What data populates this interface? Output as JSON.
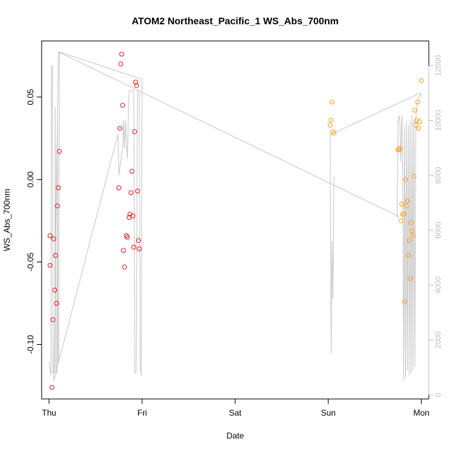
{
  "chart_data": {
    "type": "scatter",
    "title": "ATOM2 Northeast_Pacific_1 WS_Abs_700nm",
    "xlabel": "Date",
    "ylabel": "WS_Abs_700nm",
    "x_ticks": [
      "Thu",
      "Fri",
      "Sat",
      "Sun",
      "Mon"
    ],
    "x_unit": "days since Thu 00:00",
    "xlim": [
      -0.08,
      4.08
    ],
    "ylim": [
      -0.133,
      0.084
    ],
    "y_ticks": [
      0.05,
      0.0,
      -0.05,
      -0.1
    ],
    "y_tick_labels": [
      "0.05",
      "0.00",
      "-0.05",
      "-0.10"
    ],
    "y2lim": [
      -150,
      12900
    ],
    "y2_ticks": [
      0,
      2000,
      4000,
      6000,
      8000,
      10000,
      12000
    ],
    "y2_tick_labels": [
      "0",
      "2000",
      "4000",
      "6000",
      "8000",
      "10000",
      "12000"
    ],
    "grid": false,
    "colors": {
      "red": "#e41a1c",
      "orange": "#ff9f1c",
      "altitude": "#c8c8c8",
      "axis": "#000000",
      "axis2": "#bdbdbd"
    },
    "series": [
      {
        "color": "red",
        "points": [
          [
            0.01,
            -0.052
          ],
          [
            0.01,
            -0.034
          ],
          [
            0.03,
            -0.126
          ],
          [
            0.04,
            -0.085
          ],
          [
            0.05,
            -0.036
          ],
          [
            0.06,
            -0.067
          ],
          [
            0.07,
            -0.046
          ],
          [
            0.08,
            -0.075
          ],
          [
            0.09,
            -0.016
          ],
          [
            0.1,
            -0.005
          ],
          [
            0.11,
            0.017
          ],
          [
            0.75,
            -0.005
          ],
          [
            0.76,
            0.031
          ],
          [
            0.77,
            0.07
          ],
          [
            0.78,
            0.076
          ],
          [
            0.79,
            0.045
          ],
          [
            0.8,
            -0.043
          ],
          [
            0.81,
            -0.053
          ],
          [
            0.83,
            -0.034
          ],
          [
            0.84,
            -0.035
          ],
          [
            0.86,
            -0.023
          ],
          [
            0.87,
            -0.021
          ],
          [
            0.88,
            -0.008
          ],
          [
            0.89,
            0.005
          ],
          [
            0.9,
            -0.022
          ],
          [
            0.91,
            -0.041
          ],
          [
            0.92,
            0.029
          ],
          [
            0.93,
            0.059
          ],
          [
            0.94,
            0.057
          ],
          [
            0.95,
            -0.007
          ],
          [
            0.96,
            -0.037
          ],
          [
            0.97,
            -0.042
          ]
        ]
      },
      {
        "color": "orange",
        "points": [
          [
            3.02,
            0.033
          ],
          [
            3.03,
            0.036
          ],
          [
            3.04,
            0.047
          ],
          [
            3.05,
            0.029
          ],
          [
            3.06,
            0.028
          ],
          [
            3.75,
            0.018
          ],
          [
            3.76,
            0.018
          ],
          [
            3.77,
            0.019
          ],
          [
            3.78,
            -0.025
          ],
          [
            3.79,
            -0.015
          ],
          [
            3.8,
            -0.021
          ],
          [
            3.81,
            -0.021
          ],
          [
            3.82,
            -0.074
          ],
          [
            3.83,
            0.0
          ],
          [
            3.84,
            -0.016
          ],
          [
            3.85,
            -0.013
          ],
          [
            3.86,
            -0.046
          ],
          [
            3.87,
            -0.037
          ],
          [
            3.88,
            -0.06
          ],
          [
            3.89,
            -0.026
          ],
          [
            3.9,
            -0.031
          ],
          [
            3.91,
            -0.034
          ],
          [
            3.92,
            0.002
          ],
          [
            3.93,
            0.042
          ],
          [
            3.94,
            0.033
          ],
          [
            3.95,
            0.036
          ],
          [
            3.96,
            0.047
          ],
          [
            3.97,
            0.031
          ],
          [
            3.98,
            0.035
          ],
          [
            4.0,
            0.06
          ]
        ]
      }
    ],
    "altitude_line": {
      "axis": "right",
      "points": [
        [
          0.0,
          1200
        ],
        [
          0.02,
          700
        ],
        [
          0.025,
          12000
        ],
        [
          0.035,
          12000
        ],
        [
          0.04,
          800
        ],
        [
          0.06,
          800
        ],
        [
          0.065,
          10500
        ],
        [
          0.075,
          800
        ],
        [
          0.085,
          800
        ],
        [
          0.09,
          10500
        ],
        [
          0.095,
          1200
        ],
        [
          0.105,
          1200
        ],
        [
          0.11,
          12500
        ],
        [
          1.0,
          11500
        ],
        [
          0.99,
          700
        ],
        [
          0.98,
          1000
        ],
        [
          0.97,
          11100
        ],
        [
          0.95,
          11100
        ],
        [
          0.935,
          800
        ],
        [
          0.92,
          800
        ],
        [
          0.91,
          11100
        ],
        [
          0.86,
          11100
        ],
        [
          0.84,
          8600
        ],
        [
          0.82,
          10000
        ],
        [
          0.81,
          9000
        ],
        [
          0.8,
          10000
        ],
        [
          0.79,
          9000
        ],
        [
          0.75,
          8000
        ],
        [
          0.74,
          9500
        ],
        [
          0.08,
          900
        ],
        [
          0.05,
          500
        ],
        [
          0.1,
          12500
        ],
        [
          3.76,
          6500
        ],
        [
          3.74,
          6500
        ],
        [
          3.75,
          10000
        ],
        [
          3.76,
          10200
        ],
        [
          3.77,
          9800
        ],
        [
          3.78,
          8500
        ],
        [
          3.79,
          10200
        ],
        [
          3.8,
          9000
        ],
        [
          3.81,
          500
        ],
        [
          3.82,
          9800
        ],
        [
          3.83,
          600
        ],
        [
          3.84,
          10000
        ],
        [
          3.85,
          900
        ],
        [
          3.86,
          9800
        ],
        [
          3.87,
          700
        ],
        [
          3.88,
          10000
        ],
        [
          3.89,
          800
        ],
        [
          3.9,
          10200
        ],
        [
          3.91,
          900
        ],
        [
          3.92,
          10000
        ],
        [
          3.93,
          1000
        ],
        [
          3.94,
          10000
        ],
        [
          3.95,
          10500
        ],
        [
          3.96,
          10700
        ],
        [
          3.98,
          10900
        ],
        [
          4.0,
          10900
        ],
        [
          3.99,
          11000
        ],
        [
          3.03,
          9500
        ],
        [
          3.02,
          9500
        ],
        [
          3.03,
          1500
        ],
        [
          3.04,
          5600
        ],
        [
          3.05,
          3500
        ],
        [
          3.06,
          8000
        ]
      ]
    }
  }
}
